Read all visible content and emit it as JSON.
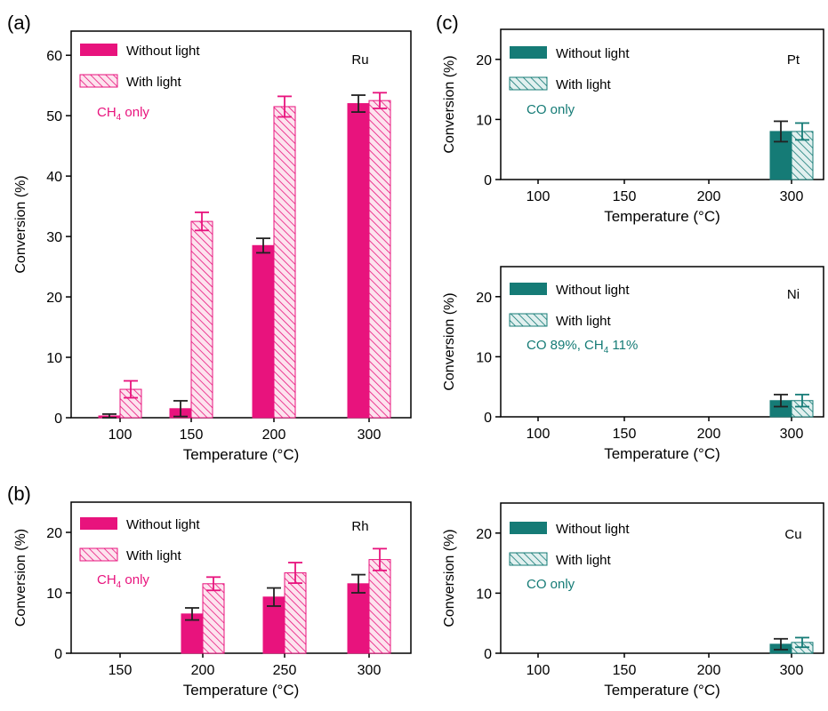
{
  "colors": {
    "magenta": "#E8137D",
    "magenta_light": "#F7A6C9",
    "teal": "#157B76",
    "teal_light": "#A9D4D1",
    "axis": "#000000"
  },
  "chart_data": [
    {
      "panel_label": "(a)",
      "type": "bar",
      "categories": [
        "100",
        "150",
        "200",
        "300"
      ],
      "series": [
        {
          "name": "Without light",
          "values": [
            0.3,
            1.5,
            28.5,
            52
          ],
          "errors": [
            0.3,
            1.3,
            1.2,
            1.4
          ]
        },
        {
          "name": "With light",
          "values": [
            4.7,
            32.5,
            51.5,
            52.5
          ],
          "errors": [
            1.4,
            1.5,
            1.7,
            1.3
          ]
        }
      ],
      "metal": "Ru",
      "product_note": {
        "pre": "CH",
        "sub": "4",
        "post": " only"
      },
      "xlabel": "Temperature (°C)",
      "ylabel": "Conversion (%)",
      "ylim": [
        0,
        64
      ],
      "yticks": [
        0,
        10,
        20,
        30,
        40,
        50,
        60
      ],
      "theme": "magenta"
    },
    {
      "panel_label": "(b)",
      "type": "bar",
      "categories": [
        "150",
        "200",
        "250",
        "300"
      ],
      "series": [
        {
          "name": "Without light",
          "values": [
            0,
            6.5,
            9.3,
            11.5
          ],
          "errors": [
            0,
            1.0,
            1.5,
            1.5
          ]
        },
        {
          "name": "With light",
          "values": [
            0,
            11.5,
            13.3,
            15.5
          ],
          "errors": [
            0,
            1.1,
            1.7,
            1.8
          ]
        }
      ],
      "metal": "Rh",
      "product_note": {
        "pre": "CH",
        "sub": "4",
        "post": " only"
      },
      "xlabel": "Temperature (°C)",
      "ylabel": "Conversion (%)",
      "ylim": [
        0,
        25
      ],
      "yticks": [
        0,
        10,
        20
      ],
      "theme": "magenta"
    },
    {
      "panel_label": "(c)",
      "type": "bar",
      "categories": [
        "100",
        "150",
        "200",
        "300"
      ],
      "series": [
        {
          "name": "Without light",
          "values": [
            0,
            0,
            0,
            8
          ],
          "errors": [
            0,
            0,
            0,
            1.7
          ]
        },
        {
          "name": "With light",
          "values": [
            0,
            0,
            0,
            8
          ],
          "errors": [
            0,
            0,
            0,
            1.4
          ]
        }
      ],
      "metal": "Pt",
      "product_note": {
        "pre": "CO only",
        "sub": "",
        "post": ""
      },
      "xlabel": "Temperature (°C)",
      "ylabel": "Conversion (%)",
      "ylim": [
        0,
        25
      ],
      "yticks": [
        0,
        10,
        20
      ],
      "theme": "teal"
    },
    {
      "panel_label": "",
      "type": "bar",
      "categories": [
        "100",
        "150",
        "200",
        "300"
      ],
      "series": [
        {
          "name": "Without light",
          "values": [
            0,
            0,
            0,
            2.7
          ],
          "errors": [
            0,
            0,
            0,
            1.0
          ]
        },
        {
          "name": "With light",
          "values": [
            0,
            0,
            0,
            2.7
          ],
          "errors": [
            0,
            0,
            0,
            1.0
          ]
        }
      ],
      "metal": "Ni",
      "product_note": {
        "pre": "CO 89%, CH",
        "sub": "4",
        "post": " 11%"
      },
      "xlabel": "Temperature (°C)",
      "ylabel": "Conversion (%)",
      "ylim": [
        0,
        25
      ],
      "yticks": [
        0,
        10,
        20
      ],
      "theme": "teal"
    },
    {
      "panel_label": "",
      "type": "bar",
      "categories": [
        "100",
        "150",
        "200",
        "300"
      ],
      "series": [
        {
          "name": "Without light",
          "values": [
            0,
            0,
            0,
            1.5
          ],
          "errors": [
            0,
            0,
            0,
            0.9
          ]
        },
        {
          "name": "With light",
          "values": [
            0,
            0,
            0,
            1.8
          ],
          "errors": [
            0,
            0,
            0,
            0.8
          ]
        }
      ],
      "metal": "Cu",
      "product_note": {
        "pre": "CO only",
        "sub": "",
        "post": ""
      },
      "xlabel": "Temperature (°C)",
      "ylabel": "Conversion (%)",
      "ylim": [
        0,
        25
      ],
      "yticks": [
        0,
        10,
        20
      ],
      "theme": "teal"
    }
  ]
}
